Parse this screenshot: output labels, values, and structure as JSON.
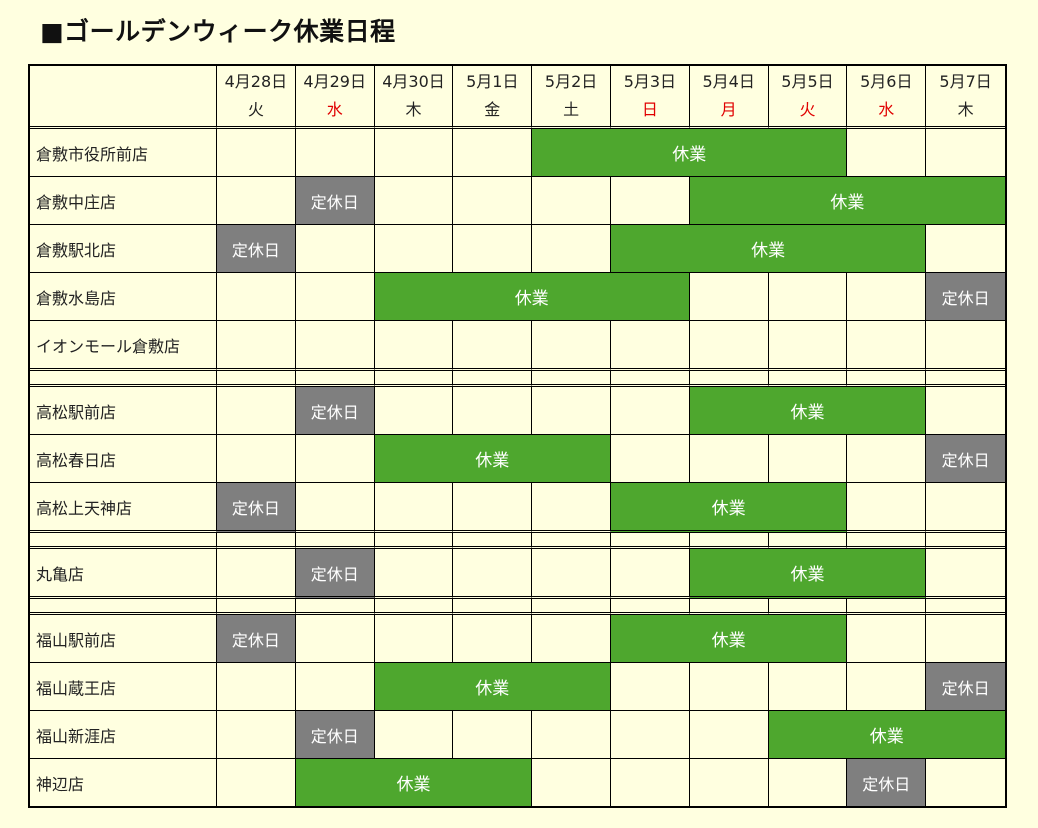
{
  "title": "■ゴールデンウィーク休業日程",
  "days": [
    {
      "date": "4月28日",
      "dow": "火",
      "red": false
    },
    {
      "date": "4月29日",
      "dow": "水",
      "red": true
    },
    {
      "date": "4月30日",
      "dow": "木",
      "red": false
    },
    {
      "date": "5月1日",
      "dow": "金",
      "red": false
    },
    {
      "date": "5月2日",
      "dow": "土",
      "red": false
    },
    {
      "date": "5月3日",
      "dow": "日",
      "red": true
    },
    {
      "date": "5月4日",
      "dow": "月",
      "red": true
    },
    {
      "date": "5月5日",
      "dow": "火",
      "red": true
    },
    {
      "date": "5月6日",
      "dow": "水",
      "red": true
    },
    {
      "date": "5月7日",
      "dow": "木",
      "red": false
    }
  ],
  "labels": {
    "closed": "休業",
    "regular_holiday": "定休日"
  },
  "colors": {
    "closed": "#4ea72e",
    "regular_holiday": "#7f7f7f",
    "holiday_text": "#e00000",
    "background": "#ffffe0"
  },
  "groups": [
    {
      "stores": [
        {
          "name": "倉敷市役所前店",
          "cells": [
            null,
            null,
            null,
            null,
            "closed",
            "closed",
            "closed",
            "closed",
            null,
            null
          ]
        },
        {
          "name": "倉敷中庄店",
          "cells": [
            null,
            "regular_holiday",
            null,
            null,
            null,
            null,
            "closed",
            "closed",
            "closed",
            "closed"
          ]
        },
        {
          "name": "倉敷駅北店",
          "cells": [
            "regular_holiday",
            null,
            null,
            null,
            null,
            "closed",
            "closed",
            "closed",
            "closed",
            null
          ]
        },
        {
          "name": "倉敷水島店",
          "cells": [
            null,
            null,
            "closed",
            "closed",
            "closed",
            "closed",
            null,
            null,
            null,
            "regular_holiday"
          ]
        },
        {
          "name": "イオンモール倉敷店",
          "cells": [
            null,
            null,
            null,
            null,
            null,
            null,
            null,
            null,
            null,
            null
          ]
        }
      ]
    },
    {
      "stores": [
        {
          "name": "高松駅前店",
          "cells": [
            null,
            "regular_holiday",
            null,
            null,
            null,
            null,
            "closed",
            "closed",
            "closed",
            null
          ]
        },
        {
          "name": "高松春日店",
          "cells": [
            null,
            null,
            "closed",
            "closed",
            "closed",
            null,
            null,
            null,
            null,
            "regular_holiday"
          ]
        },
        {
          "name": "高松上天神店",
          "cells": [
            "regular_holiday",
            null,
            null,
            null,
            null,
            "closed",
            "closed",
            "closed",
            null,
            null
          ]
        }
      ]
    },
    {
      "stores": [
        {
          "name": "丸亀店",
          "cells": [
            null,
            "regular_holiday",
            null,
            null,
            null,
            null,
            "closed",
            "closed",
            "closed",
            null
          ]
        }
      ]
    },
    {
      "stores": [
        {
          "name": "福山駅前店",
          "cells": [
            "regular_holiday",
            null,
            null,
            null,
            null,
            "closed",
            "closed",
            "closed",
            null,
            null
          ]
        },
        {
          "name": "福山蔵王店",
          "cells": [
            null,
            null,
            "closed",
            "closed",
            "closed",
            null,
            null,
            null,
            null,
            "regular_holiday"
          ]
        },
        {
          "name": "福山新涯店",
          "cells": [
            null,
            "regular_holiday",
            null,
            null,
            null,
            null,
            null,
            "closed",
            "closed",
            "closed"
          ]
        },
        {
          "name": "神辺店",
          "cells": [
            null,
            "closed",
            "closed",
            "closed",
            null,
            null,
            null,
            null,
            "regular_holiday",
            null
          ]
        }
      ]
    }
  ]
}
